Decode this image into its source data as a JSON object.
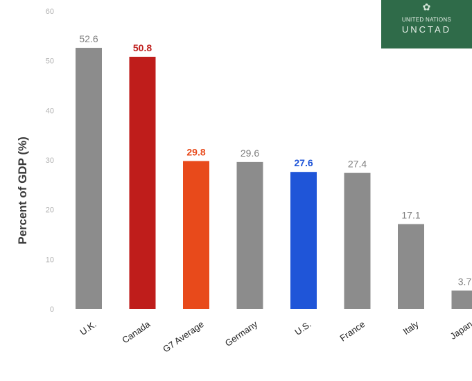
{
  "logo": {
    "line1": "UNITED NATIONS",
    "line2": "UNCTAD"
  },
  "chart_data": {
    "type": "bar",
    "title": "",
    "xlabel": "",
    "ylabel": "Percent of GDP (%)",
    "ylim": [
      0,
      60
    ],
    "yticks": [
      "0",
      "10",
      "20",
      "30",
      "40",
      "50",
      "60"
    ],
    "grid": false,
    "legend": "none",
    "categories": [
      "U.K.",
      "Canada",
      "G7 Average",
      "Germany",
      "U.S.",
      "France",
      "Italy",
      "Japan"
    ],
    "values": [
      52.6,
      50.8,
      29.8,
      29.6,
      27.6,
      27.4,
      17.1,
      3.7
    ],
    "labels": [
      "52.6",
      "50.8",
      "29.8",
      "29.6",
      "27.6",
      "27.4",
      "17.1",
      "3.7"
    ],
    "bar_colors": [
      "#8c8c8c",
      "#bf1d1b",
      "#e84a1b",
      "#8c8c8c",
      "#1f55d8",
      "#8c8c8c",
      "#8c8c8c",
      "#8c8c8c"
    ],
    "label_colors": [
      "#7f7f7f",
      "#bf1d1b",
      "#e84a1b",
      "#7f7f7f",
      "#1f55d8",
      "#7f7f7f",
      "#7f7f7f",
      "#7f7f7f"
    ],
    "label_bold": [
      false,
      true,
      true,
      false,
      true,
      false,
      false,
      false
    ]
  }
}
